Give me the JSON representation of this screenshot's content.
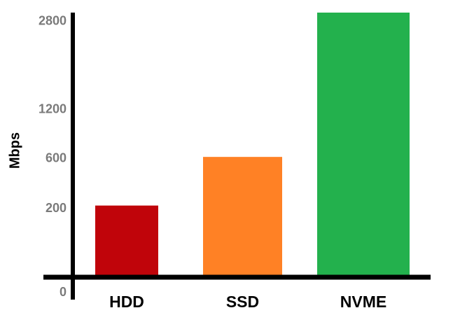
{
  "chart_data": {
    "type": "bar",
    "y_label": "Mbps",
    "categories": [
      "HDD",
      "SSD",
      "NVME"
    ],
    "values": [
      220,
      620,
      3000
    ],
    "colors": [
      "#c0040a",
      "#ff8125",
      "#23b14d"
    ],
    "ylim": [
      0,
      3000
    ],
    "yticks": [
      0,
      200,
      600,
      1200,
      2800
    ],
    "yscale": "sqrt"
  }
}
